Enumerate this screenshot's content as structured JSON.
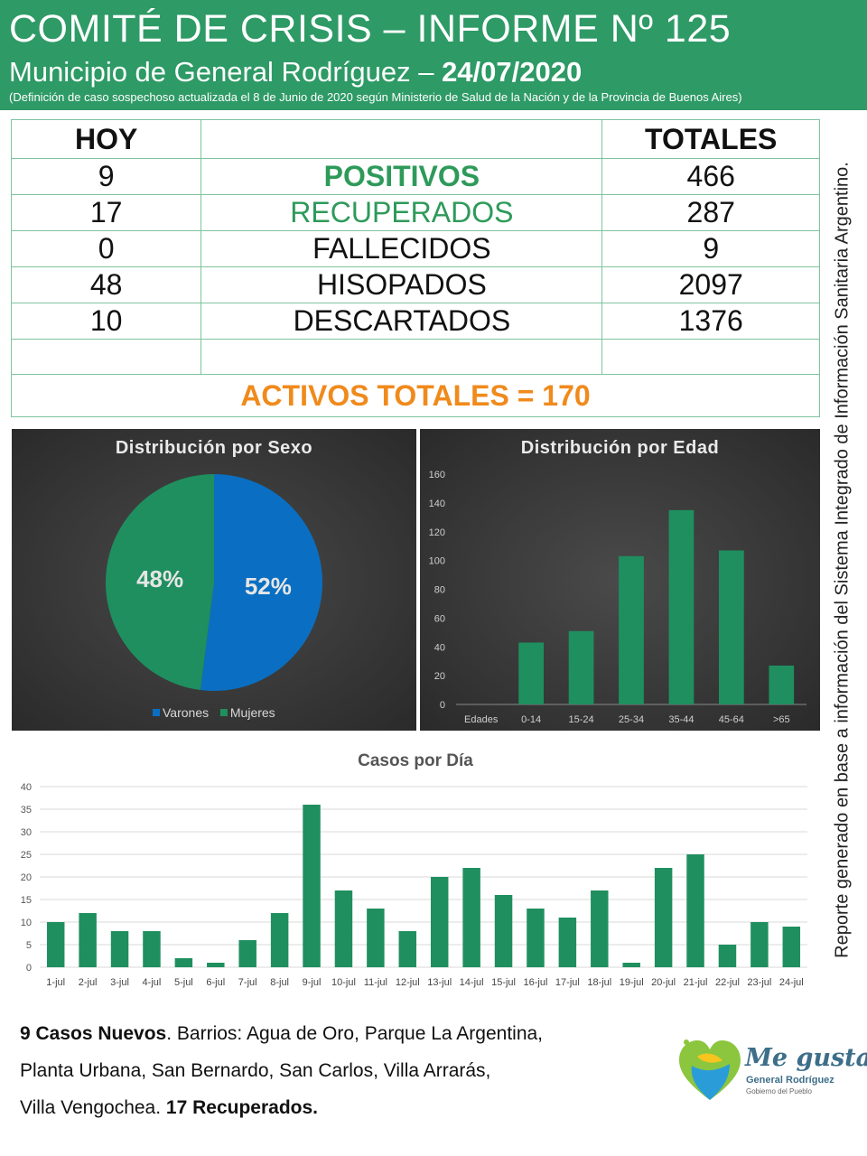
{
  "header": {
    "title": "COMITÉ DE CRISIS – INFORME Nº 125",
    "subtitle_prefix": "Municipio de General Rodríguez –",
    "subtitle_date": "24/07/2020",
    "note": "(Definición de caso sospechoso actualizada el 8 de Junio de 2020 según Ministerio de Salud de la Nación y de la Provincia de Buenos Aires)"
  },
  "table": {
    "head_today": "HOY",
    "head_totals": "TOTALES",
    "rows": [
      {
        "hoy": "9",
        "label": "POSITIVOS",
        "total": "466"
      },
      {
        "hoy": "17",
        "label": "RECUPERADOS",
        "total": "287"
      },
      {
        "hoy": "0",
        "label": "FALLECIDOS",
        "total": "9"
      },
      {
        "hoy": "48",
        "label": "HISOPADOS",
        "total": "2097"
      },
      {
        "hoy": "10",
        "label": "DESCARTADOS",
        "total": "1376"
      }
    ],
    "activos": "ACTIVOS TOTALES = 170"
  },
  "side_text": "Reporte generado en base a información del Sistema Integrado de Información Sanitaria Argentino.",
  "footer": {
    "new_cases_bold": "9 Casos Nuevos",
    "line1_rest": ". Barrios:  Agua de Oro, Parque La Argentina,",
    "line2": "Planta Urbana, San Bernardo, San Carlos, Villa Arrarás,",
    "line3_start": "Villa Vengochea. ",
    "recovered_bold": "17 Recuperados."
  },
  "logo": {
    "line1": "Me gusta",
    "line2": "General Rodríguez",
    "line3": "Gobierno del Pueblo"
  },
  "colors": {
    "header_green": "#2e9a66",
    "bar_green": "#1f8f5f",
    "varones_blue": "#0a6fc2",
    "mujeres_green": "#1f8f5f",
    "activos_orange": "#f08a1c"
  },
  "chart_data": [
    {
      "type": "pie",
      "title": "Distribución  por Sexo",
      "labels": [
        "Varones",
        "Mujeres"
      ],
      "values": [
        52,
        48
      ],
      "data_labels": [
        "52%",
        "48%"
      ],
      "legend": "bottom"
    },
    {
      "type": "bar",
      "title": "Distribución  por Edad",
      "categories": [
        "Edades",
        "0-14",
        "15-24",
        "25-34",
        "35-44",
        "45-64",
        ">65"
      ],
      "values": [
        0,
        43,
        51,
        103,
        135,
        107,
        27
      ],
      "ylim": [
        0,
        160
      ],
      "yticks": [
        0,
        20,
        40,
        60,
        80,
        100,
        120,
        140,
        160
      ]
    },
    {
      "type": "bar",
      "title": "Casos por Día",
      "categories": [
        "1-jul",
        "2-jul",
        "3-jul",
        "4-jul",
        "5-jul",
        "6-jul",
        "7-jul",
        "8-jul",
        "9-jul",
        "10-jul",
        "11-jul",
        "12-jul",
        "13-jul",
        "14-jul",
        "15-jul",
        "16-jul",
        "17-jul",
        "18-jul",
        "19-jul",
        "20-jul",
        "21-jul",
        "22-jul",
        "23-jul",
        "24-jul"
      ],
      "values": [
        10,
        12,
        8,
        8,
        2,
        1,
        6,
        12,
        36,
        17,
        13,
        8,
        20,
        22,
        16,
        13,
        11,
        17,
        1,
        22,
        25,
        5,
        10,
        9
      ],
      "ylim": [
        0,
        40
      ],
      "yticks": [
        0,
        5,
        10,
        15,
        20,
        25,
        30,
        35,
        40
      ],
      "grid": true
    }
  ]
}
